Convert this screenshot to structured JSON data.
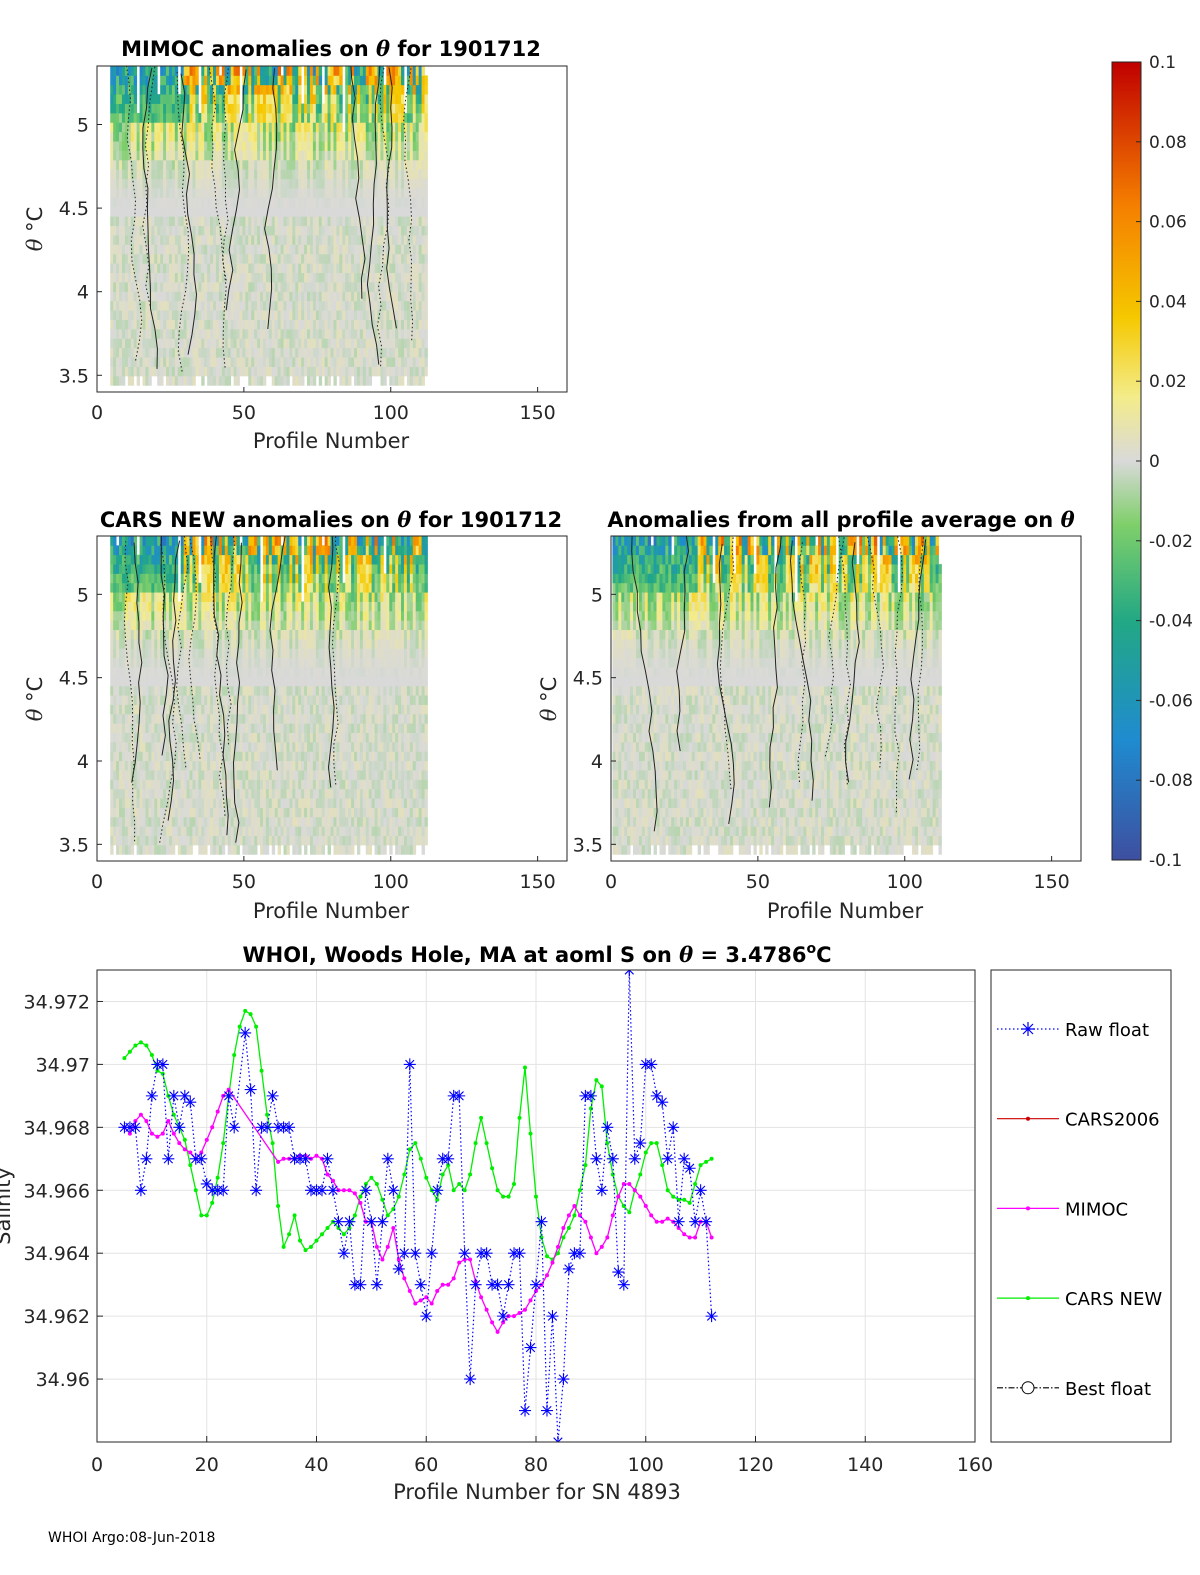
{
  "footer": "WHOI Argo:08-Jun-2018",
  "colorbar": {
    "ticks": [
      "0.1",
      "0.08",
      "0.06",
      "0.04",
      "0.02",
      "0",
      "-0.02",
      "-0.04",
      "-0.06",
      "-0.08",
      "-0.1"
    ],
    "min": -0.1,
    "max": 0.1
  },
  "chart_data": [
    {
      "type": "heatmap",
      "title_prefix": "MIMOC anomalies on ",
      "title_symbol": "θ",
      "title_suffix": "  for 1901712",
      "xlabel": "Profile Number",
      "ylabel": "θ °C",
      "ylabel_parts": {
        "sym": "θ",
        "unit": "°C"
      },
      "xlim": [
        0,
        160
      ],
      "ylim": [
        3.4,
        5.35
      ],
      "xticks": [
        0,
        50,
        100,
        150
      ],
      "yticks": [
        3.5,
        4,
        4.5,
        5
      ],
      "xtick_labels": [
        "0",
        "50",
        "100",
        "150"
      ],
      "ytick_labels": [
        "3.5",
        "4",
        "4.5",
        "5"
      ],
      "profile_range": [
        5,
        112
      ],
      "colormap_range": [
        -0.1,
        0.1
      ]
    },
    {
      "type": "heatmap",
      "title_prefix": "CARS NEW anomalies on ",
      "title_symbol": "θ",
      "title_suffix": " for 1901712",
      "xlabel": "Profile Number",
      "ylabel": "θ °C",
      "ylabel_parts": {
        "sym": "θ",
        "unit": "°C"
      },
      "xlim": [
        0,
        160
      ],
      "ylim": [
        3.4,
        5.35
      ],
      "xticks": [
        0,
        50,
        100,
        150
      ],
      "yticks": [
        3.5,
        4,
        4.5,
        5
      ],
      "xtick_labels": [
        "0",
        "50",
        "100",
        "150"
      ],
      "ytick_labels": [
        "3.5",
        "4",
        "4.5",
        "5"
      ],
      "profile_range": [
        5,
        112
      ],
      "colormap_range": [
        -0.1,
        0.1
      ]
    },
    {
      "type": "heatmap",
      "title_prefix": "Anomalies from all profile average on ",
      "title_symbol": "θ",
      "title_suffix": "",
      "xlabel": "Profile Number",
      "ylabel": "θ °C",
      "ylabel_parts": {
        "sym": "θ",
        "unit": "°C"
      },
      "xlim": [
        0,
        160
      ],
      "ylim": [
        3.4,
        5.35
      ],
      "xticks": [
        0,
        50,
        100,
        150
      ],
      "yticks": [
        3.5,
        4,
        4.5,
        5
      ],
      "xtick_labels": [
        "0",
        "50",
        "100",
        "150"
      ],
      "ytick_labels": [
        "3.5",
        "4",
        "4.5",
        "5"
      ],
      "profile_range": [
        1,
        112
      ],
      "colormap_range": [
        -0.1,
        0.1
      ]
    },
    {
      "type": "line",
      "title_prefix": "WHOI, Woods Hole, MA at aoml S on ",
      "title_symbol": "θ",
      "title_suffix": " = 3.4786",
      "title_sup": "o",
      "title_tail": "C",
      "xlabel": "Profile Number for SN 4893",
      "ylabel": "Salinity",
      "xlim": [
        0,
        160
      ],
      "ylim": [
        34.958,
        34.973
      ],
      "xticks": [
        0,
        20,
        40,
        60,
        80,
        100,
        120,
        140,
        160
      ],
      "yticks": [
        34.96,
        34.962,
        34.964,
        34.966,
        34.968,
        34.97,
        34.972
      ],
      "xtick_labels": [
        "0",
        "20",
        "40",
        "60",
        "80",
        "100",
        "120",
        "140",
        "160"
      ],
      "ytick_labels": [
        "34.96",
        "34.962",
        "34.964",
        "34.966",
        "34.968",
        "34.97",
        "34.972"
      ],
      "legend": [
        "Raw float",
        "CARS2006",
        "MIMOC",
        "CARS NEW",
        "Best float"
      ],
      "legend_position": "outside-right",
      "series": [
        {
          "name": "Raw float",
          "color": "#0000ff",
          "style": "dotted",
          "marker": "asterisk",
          "x": [
            5,
            6,
            7,
            8,
            9,
            10,
            11,
            12,
            13,
            14,
            15,
            16,
            17,
            18,
            19,
            20,
            21,
            22,
            23,
            24,
            25,
            27,
            28,
            29,
            30,
            31,
            32,
            33,
            34,
            35,
            36,
            37,
            38,
            39,
            40,
            41,
            42,
            43,
            44,
            45,
            46,
            47,
            48,
            49,
            50,
            51,
            52,
            53,
            54,
            55,
            56,
            57,
            58,
            59,
            60,
            61,
            62,
            63,
            64,
            65,
            66,
            67,
            68,
            69,
            70,
            71,
            72,
            73,
            74,
            75,
            76,
            77,
            78,
            79,
            80,
            81,
            82,
            83,
            84,
            85,
            86,
            87,
            88,
            89,
            90,
            91,
            92,
            93,
            94,
            95,
            96,
            97,
            98,
            99,
            100,
            101,
            102,
            103,
            104,
            105,
            106,
            107,
            108,
            109,
            110,
            111,
            112
          ],
          "y": [
            34.968,
            34.968,
            34.968,
            34.966,
            34.967,
            34.969,
            34.97,
            34.97,
            34.967,
            34.969,
            34.968,
            34.969,
            34.9688,
            34.967,
            34.967,
            34.9662,
            34.966,
            34.966,
            34.966,
            34.969,
            34.968,
            34.971,
            34.9692,
            34.966,
            34.968,
            34.968,
            34.969,
            34.968,
            34.968,
            34.968,
            34.967,
            34.967,
            34.967,
            34.966,
            34.966,
            34.966,
            34.967,
            34.966,
            34.965,
            34.964,
            34.965,
            34.963,
            34.963,
            34.966,
            34.965,
            34.963,
            34.965,
            34.967,
            34.966,
            34.9635,
            34.964,
            34.97,
            34.964,
            34.963,
            34.962,
            34.964,
            34.966,
            34.967,
            34.967,
            34.969,
            34.969,
            34.964,
            34.96,
            34.963,
            34.964,
            34.964,
            34.963,
            34.963,
            34.962,
            34.963,
            34.964,
            34.964,
            34.959,
            34.961,
            34.963,
            34.965,
            34.959,
            34.962,
            34.958,
            34.96,
            34.9635,
            34.964,
            34.964,
            34.969,
            34.969,
            34.967,
            34.966,
            34.968,
            34.967,
            34.9634,
            34.963,
            34.973,
            34.967,
            34.9675,
            34.97,
            34.97,
            34.969,
            34.9688,
            34.967,
            34.968,
            34.965,
            34.967,
            34.9667,
            34.965,
            34.966,
            34.965,
            34.962
          ]
        },
        {
          "name": "MIMOC",
          "color": "#ff00ff",
          "style": "solid",
          "marker": "dot",
          "x": [
            5,
            6,
            7,
            8,
            9,
            10,
            11,
            12,
            13,
            14,
            15,
            16,
            17,
            18,
            19,
            20,
            21,
            22,
            23,
            24,
            33,
            34,
            35,
            36,
            37,
            38,
            39,
            40,
            41,
            42,
            43,
            44,
            45,
            46,
            47,
            48,
            49,
            50,
            51,
            52,
            53,
            54,
            55,
            56,
            57,
            58,
            59,
            60,
            61,
            62,
            63,
            64,
            65,
            66,
            67,
            68,
            69,
            70,
            71,
            72,
            73,
            74,
            75,
            76,
            77,
            78,
            79,
            80,
            81,
            82,
            83,
            84,
            85,
            86,
            87,
            88,
            89,
            90,
            91,
            92,
            93,
            94,
            95,
            96,
            97,
            98,
            99,
            100,
            101,
            102,
            103,
            104,
            105,
            106,
            107,
            108,
            109,
            110,
            111,
            112
          ],
          "y": [
            34.968,
            34.9678,
            34.9682,
            34.9684,
            34.9682,
            34.9678,
            34.9677,
            34.9678,
            34.9682,
            34.9678,
            34.9675,
            34.9673,
            34.9672,
            34.967,
            34.9672,
            34.9676,
            34.968,
            34.9685,
            34.969,
            34.9692,
            34.9669,
            34.967,
            34.967,
            34.967,
            34.9671,
            34.9671,
            34.967,
            34.9671,
            34.967,
            34.9665,
            34.9663,
            34.966,
            34.966,
            34.966,
            34.9659,
            34.9656,
            34.965,
            34.965,
            34.9642,
            34.9638,
            34.9642,
            34.9648,
            34.9638,
            34.9632,
            34.9628,
            34.9624,
            34.9625,
            34.9626,
            34.9624,
            34.9628,
            34.963,
            34.963,
            34.9632,
            34.9637,
            34.9638,
            34.9638,
            34.9631,
            34.9626,
            34.9622,
            34.9618,
            34.9615,
            34.9618,
            34.962,
            34.962,
            34.9621,
            34.9622,
            34.9625,
            34.9628,
            34.963,
            34.9633,
            34.9637,
            34.9642,
            34.9648,
            34.9652,
            34.9655,
            34.9652,
            34.965,
            34.9645,
            34.964,
            34.9642,
            34.9645,
            34.9652,
            34.9658,
            34.9662,
            34.9662,
            34.966,
            34.9658,
            34.9655,
            34.9652,
            34.965,
            34.965,
            34.9651,
            34.965,
            34.9648,
            34.9646,
            34.9645,
            34.9645,
            34.965,
            34.965,
            34.9645
          ]
        },
        {
          "name": "CARS NEW",
          "color": "#00ee00",
          "style": "solid",
          "marker": "dot",
          "x": [
            5,
            6,
            7,
            8,
            9,
            10,
            11,
            12,
            13,
            14,
            15,
            16,
            17,
            18,
            19,
            20,
            21,
            22,
            23,
            24,
            25,
            26,
            27,
            28,
            29,
            30,
            31,
            32,
            33,
            34,
            35,
            36,
            37,
            38,
            39,
            40,
            41,
            42,
            43,
            44,
            45,
            46,
            47,
            48,
            49,
            50,
            51,
            52,
            53,
            54,
            55,
            56,
            57,
            58,
            59,
            60,
            61,
            62,
            63,
            64,
            65,
            66,
            67,
            68,
            69,
            70,
            71,
            72,
            73,
            74,
            75,
            76,
            77,
            78,
            79,
            80,
            81,
            82,
            83,
            84,
            85,
            86,
            87,
            88,
            89,
            90,
            91,
            92,
            93,
            94,
            95,
            96,
            97,
            98,
            99,
            100,
            101,
            102,
            103,
            104,
            105,
            106,
            107,
            108,
            109,
            110,
            111,
            112
          ],
          "y": [
            34.9702,
            34.9704,
            34.9706,
            34.9707,
            34.9706,
            34.9703,
            34.9698,
            34.9697,
            34.969,
            34.9684,
            34.968,
            34.9676,
            34.9668,
            34.966,
            34.9652,
            34.9652,
            34.9656,
            34.9664,
            34.9675,
            34.969,
            34.9703,
            34.9712,
            34.9717,
            34.9716,
            34.9712,
            34.9698,
            34.9684,
            34.9675,
            34.9655,
            34.9642,
            34.9646,
            34.9652,
            34.9644,
            34.9641,
            34.9642,
            34.9644,
            34.9646,
            34.9648,
            34.965,
            34.9648,
            34.9646,
            34.9648,
            34.9652,
            34.9658,
            34.9662,
            34.9664,
            34.9662,
            34.9657,
            34.9652,
            34.9654,
            34.9658,
            34.9665,
            34.9673,
            34.9675,
            34.967,
            34.9664,
            34.966,
            34.9657,
            34.9665,
            34.9668,
            34.966,
            34.9662,
            34.966,
            34.9665,
            34.9675,
            34.9683,
            34.9675,
            34.9667,
            34.966,
            34.9658,
            34.9658,
            34.9662,
            34.9683,
            34.9699,
            34.9678,
            34.9658,
            34.9645,
            34.9639,
            34.9638,
            34.964,
            34.9645,
            34.9648,
            34.9652,
            34.966,
            34.9668,
            34.9686,
            34.9695,
            34.9693,
            34.9675,
            34.9665,
            34.9658,
            34.9655,
            34.9653,
            34.966,
            34.9665,
            34.9672,
            34.9675,
            34.9675,
            34.9668,
            34.966,
            34.9658,
            34.9657,
            34.9657,
            34.9656,
            34.9662,
            34.9668,
            34.9669,
            34.967
          ]
        }
      ]
    }
  ]
}
